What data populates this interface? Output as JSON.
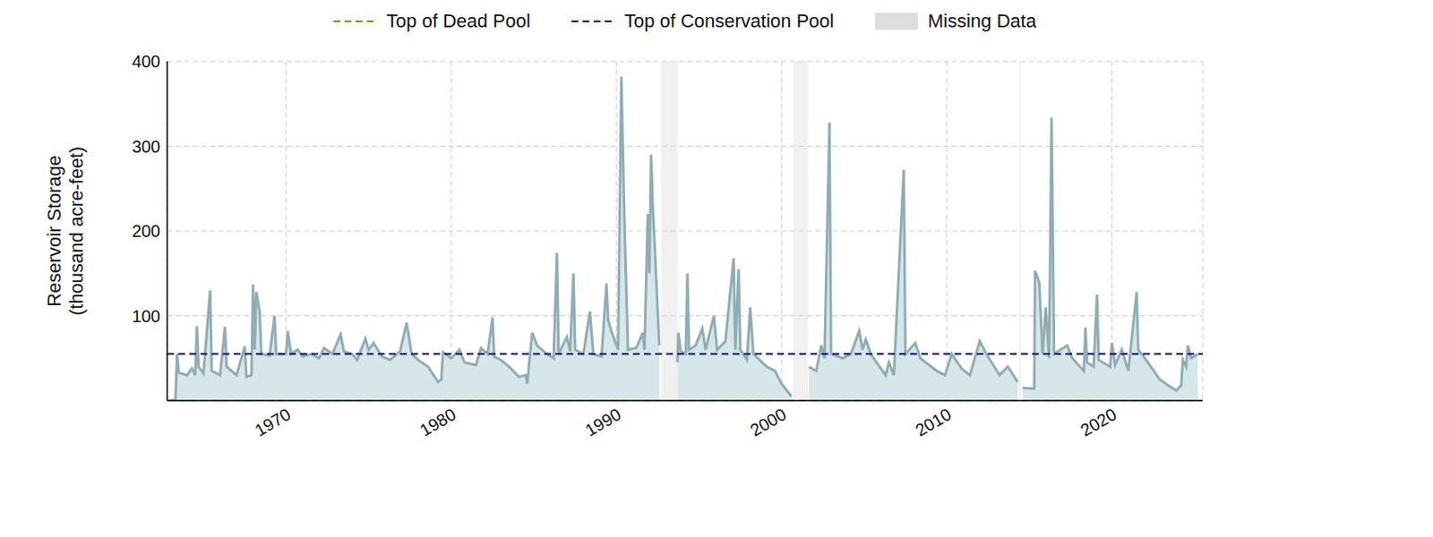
{
  "chart_data": {
    "type": "area",
    "y_label": [
      "Reservoir Storage",
      "(thousand acre-feet)"
    ],
    "legend": "top",
    "grid": true,
    "xlim": [
      1962.8,
      2025.5
    ],
    "xticks": [
      1970,
      1980,
      1990,
      2000,
      2010,
      2020
    ],
    "ylim": [
      0,
      400
    ],
    "yticks": [
      100,
      200,
      300,
      400
    ],
    "color": "#8fadb3",
    "x": [
      1962.9,
      1963.3,
      1963.4,
      1963.5,
      1964.0,
      1964.3,
      1964.5,
      1964.6,
      1964.7,
      1965.0,
      1965.4,
      1965.5,
      1966.0,
      1966.3,
      1966.4,
      1967.0,
      1967.5,
      1967.6,
      1967.9,
      1968.0,
      1968.1,
      1968.2,
      1968.4,
      1968.5,
      1969.0,
      1969.3,
      1969.4,
      1970.0,
      1970.1,
      1970.3,
      1970.7,
      1971.0,
      1971.5,
      1972.0,
      1972.3,
      1972.8,
      1973.3,
      1973.5,
      1974.0,
      1974.3,
      1974.8,
      1975.0,
      1975.3,
      1975.8,
      1976.3,
      1976.9,
      1977.3,
      1977.6,
      1978.0,
      1978.6,
      1979.2,
      1979.4,
      1979.5,
      1980.0,
      1980.5,
      1980.8,
      1981.5,
      1981.8,
      1982.2,
      1982.5,
      1982.6,
      1983.0,
      1983.5,
      1984.1,
      1984.5,
      1984.6,
      1984.9,
      1985.2,
      1985.8,
      1986.2,
      1986.4,
      1986.5,
      1987.0,
      1987.2,
      1987.4,
      1987.5,
      1988.0,
      1988.4,
      1988.6,
      1989.1,
      1989.4,
      1989.5,
      1989.7,
      1990.1,
      1990.3,
      1990.5,
      1990.7,
      1991.2,
      1991.6,
      1991.7,
      1991.9,
      1992.0,
      1992.1,
      1992.2,
      1992.3,
      1992.6,
      1993.2,
      1993.7,
      1993.75,
      1993.9,
      1994.2,
      1994.3,
      1994.4,
      1994.8,
      1995.2,
      1995.4,
      1995.9,
      1996.1,
      1996.6,
      1997.1,
      1997.2,
      1997.4,
      1997.5,
      1997.9,
      1998.1,
      1998.3,
      1999.1,
      1999.6,
      2000.0,
      2000.6,
      2001.1,
      2001.65,
      2002.1,
      2002.4,
      2002.6,
      2002.9,
      2003.0,
      2003.7,
      2004.2,
      2004.7,
      2004.9,
      2005.1,
      2005.4,
      2006.3,
      2006.5,
      2006.8,
      2007.4,
      2007.5,
      2008.1,
      2008.4,
      2009.4,
      2009.9,
      2010.3,
      2010.9,
      2011.4,
      2012.0,
      2012.4,
      2013.2,
      2013.7,
      2014.3,
      2014.45,
      2014.6,
      2015.3,
      2015.35,
      2015.6,
      2015.8,
      2016.0,
      2016.2,
      2016.35,
      2016.5,
      2017.3,
      2017.6,
      2018.3,
      2018.4,
      2018.5,
      2018.9,
      2019.1,
      2019.2,
      2019.9,
      2020.0,
      2020.2,
      2020.6,
      2021.0,
      2021.5,
      2021.6,
      2022.0,
      2022.9,
      2023.4,
      2023.9,
      2024.2,
      2024.3,
      2024.5,
      2024.6,
      2024.8,
      2025.2
    ],
    "values": [
      0,
      1,
      55,
      33,
      30,
      38,
      30,
      88,
      40,
      32,
      130,
      35,
      30,
      87,
      40,
      30,
      64,
      28,
      30,
      137,
      60,
      128,
      105,
      55,
      53,
      100,
      55,
      55,
      82,
      55,
      60,
      52,
      55,
      50,
      62,
      55,
      78,
      58,
      55,
      48,
      73,
      60,
      68,
      52,
      48,
      58,
      92,
      55,
      48,
      40,
      22,
      25,
      57,
      50,
      60,
      45,
      42,
      62,
      55,
      98,
      52,
      48,
      40,
      28,
      30,
      20,
      80,
      65,
      55,
      50,
      174,
      55,
      75,
      58,
      150,
      60,
      55,
      105,
      55,
      52,
      138,
      95,
      82,
      60,
      382,
      200,
      60,
      62,
      80,
      60,
      220,
      150,
      290,
      230,
      190,
      65,
      null,
      45,
      80,
      58,
      55,
      150,
      60,
      65,
      85,
      60,
      100,
      60,
      70,
      168,
      60,
      155,
      60,
      48,
      110,
      55,
      40,
      35,
      20,
      5,
      null,
      40,
      35,
      65,
      50,
      328,
      55,
      50,
      55,
      82,
      60,
      72,
      55,
      30,
      45,
      30,
      272,
      55,
      68,
      50,
      35,
      30,
      55,
      38,
      30,
      70,
      55,
      30,
      40,
      22,
      null,
      15,
      14,
      153,
      140,
      55,
      110,
      50,
      334,
      55,
      65,
      50,
      35,
      86,
      45,
      40,
      125,
      48,
      40,
      68,
      42,
      60,
      35,
      128,
      60,
      50,
      25,
      18,
      12,
      18,
      48,
      40,
      65,
      50,
      55
    ],
    "reference_lines": [
      {
        "name": "Top of Dead Pool",
        "value": 0,
        "color": "#8b8b00",
        "line_style": "dashed"
      },
      {
        "name": "Top of Conservation Pool",
        "value": 55,
        "color": "#0a0a80",
        "line_style": "dashed"
      }
    ],
    "missing_data": {
      "name": "Missing Data",
      "color": "#dddddd",
      "ranges": [
        [
          1992.7,
          1993.7
        ],
        [
          2000.7,
          2001.6
        ],
        [
          2014.4,
          2014.5
        ]
      ]
    }
  }
}
